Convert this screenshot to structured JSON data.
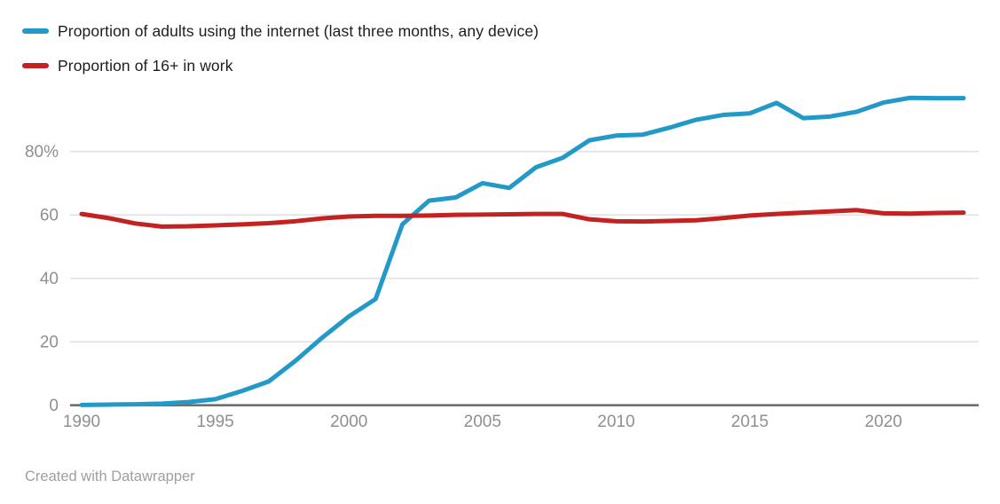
{
  "footer": {
    "credit": "Created with Datawrapper"
  },
  "colors": {
    "background": "#ffffff",
    "grid": "#e2e2e2",
    "axis_line": "#6e6e6e",
    "tick_text": "#8f8f8f",
    "legend_text": "#1d1d1d",
    "footer_text": "#9f9f9f"
  },
  "chart_data": {
    "type": "line",
    "title": "",
    "xlabel": "",
    "ylabel": "",
    "grid": "horizontal",
    "legend_position": "top-left",
    "xlim": [
      1990,
      2023
    ],
    "ylim": [
      0,
      100
    ],
    "x": [
      1990,
      1991,
      1992,
      1993,
      1994,
      1995,
      1996,
      1997,
      1998,
      1999,
      2000,
      2001,
      2002,
      2003,
      2004,
      2005,
      2006,
      2007,
      2008,
      2009,
      2010,
      2011,
      2012,
      2013,
      2014,
      2015,
      2016,
      2017,
      2018,
      2019,
      2020,
      2021,
      2022,
      2023
    ],
    "series": [
      {
        "name": "Proportion of adults using the internet (last three months, any device)",
        "color": "#2299c7",
        "values": [
          0.1,
          0.2,
          0.3,
          0.5,
          1,
          1.9,
          4.5,
          7.5,
          14,
          21.3,
          28,
          33.5,
          57,
          64.5,
          65.5,
          70,
          68.5,
          75,
          78,
          83.5,
          85,
          85.3,
          87.5,
          90,
          91.5,
          92,
          95.3,
          90.5,
          91,
          92.5,
          95.4,
          96.9,
          96.8,
          96.8
        ]
      },
      {
        "name": "Proportion of 16+ in work",
        "color": "#c32221",
        "values": [
          60.3,
          59,
          57.3,
          56.3,
          56.4,
          56.7,
          57,
          57.4,
          58,
          58.9,
          59.5,
          59.7,
          59.7,
          59.8,
          60,
          60.1,
          60.2,
          60.3,
          60.3,
          58.6,
          58,
          57.9,
          58.1,
          58.3,
          59,
          59.8,
          60.3,
          60.7,
          61.1,
          61.5,
          60.5,
          60.4,
          60.6,
          60.7
        ]
      }
    ],
    "y_ticks": [
      {
        "value": 0,
        "label": "0"
      },
      {
        "value": 20,
        "label": "20"
      },
      {
        "value": 40,
        "label": "40"
      },
      {
        "value": 60,
        "label": "60"
      },
      {
        "value": 80,
        "label": "80%"
      }
    ],
    "x_ticks": [
      {
        "value": 1990,
        "label": "1990"
      },
      {
        "value": 1995,
        "label": "1995"
      },
      {
        "value": 2000,
        "label": "2000"
      },
      {
        "value": 2005,
        "label": "2005"
      },
      {
        "value": 2010,
        "label": "2010"
      },
      {
        "value": 2015,
        "label": "2015"
      },
      {
        "value": 2020,
        "label": "2020"
      }
    ]
  }
}
